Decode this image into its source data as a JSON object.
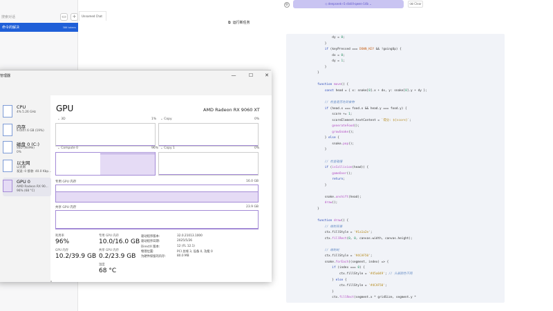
{
  "chat_app": {
    "search_placeholder": "搜索对话",
    "active_chat": {
      "title": "命令的解决",
      "count": "386 tokens"
    },
    "tab_label": "Unnamed Chat",
    "model_selector": "◇ deepseek-r1-distill-qwen-14b ⌄",
    "clear_button": "⌫ Clear",
    "code_lines": [
      [
        {
          "t": "                dy = ",
          "c": ""
        },
        {
          "t": "0",
          "c": "num"
        },
        {
          "t": ";",
          "c": ""
        }
      ],
      [
        {
          "t": "            }",
          "c": ""
        }
      ],
      [
        {
          "t": "            ",
          "c": ""
        },
        {
          "t": "if",
          "c": "kw"
        },
        {
          "t": " (keyPressed === ",
          "c": ""
        },
        {
          "t": "DOWN_KEY",
          "c": "const"
        },
        {
          "t": " && !goingUp) {",
          "c": ""
        }
      ],
      [
        {
          "t": "                dx = ",
          "c": ""
        },
        {
          "t": "0",
          "c": "num"
        },
        {
          "t": ";",
          "c": ""
        }
      ],
      [
        {
          "t": "                dy = ",
          "c": ""
        },
        {
          "t": "1",
          "c": "num"
        },
        {
          "t": ";",
          "c": ""
        }
      ],
      [
        {
          "t": "            }",
          "c": ""
        }
      ],
      [
        {
          "t": "        }",
          "c": ""
        }
      ],
      [
        {
          "t": "",
          "c": ""
        }
      ],
      [
        {
          "t": "        ",
          "c": ""
        },
        {
          "t": "function",
          "c": "kw"
        },
        {
          "t": " ",
          "c": ""
        },
        {
          "t": "move",
          "c": "fn"
        },
        {
          "t": "() {",
          "c": ""
        }
      ],
      [
        {
          "t": "            ",
          "c": ""
        },
        {
          "t": "const",
          "c": "kw"
        },
        {
          "t": " head = { x: snake[",
          "c": ""
        },
        {
          "t": "0",
          "c": "num"
        },
        {
          "t": "].x + dx, y: snake[",
          "c": ""
        },
        {
          "t": "0",
          "c": "num"
        },
        {
          "t": "].y + dy };",
          "c": ""
        }
      ],
      [
        {
          "t": "",
          "c": ""
        }
      ],
      [
        {
          "t": "            ",
          "c": ""
        },
        {
          "t": "// 检查是否吃到食物",
          "c": "cm"
        }
      ],
      [
        {
          "t": "            ",
          "c": ""
        },
        {
          "t": "if",
          "c": "kw"
        },
        {
          "t": " (head.x === food.x && head.y === food.y) {",
          "c": ""
        }
      ],
      [
        {
          "t": "                score += ",
          "c": ""
        },
        {
          "t": "1",
          "c": "num"
        },
        {
          "t": ";",
          "c": ""
        }
      ],
      [
        {
          "t": "                scoreElement.textContent = ",
          "c": ""
        },
        {
          "t": "`得分: ${score}`",
          "c": "str"
        },
        {
          "t": ";",
          "c": ""
        }
      ],
      [
        {
          "t": "                ",
          "c": ""
        },
        {
          "t": "generateFood",
          "c": "fn"
        },
        {
          "t": "();",
          "c": ""
        }
      ],
      [
        {
          "t": "                ",
          "c": ""
        },
        {
          "t": "growSnake",
          "c": "fn"
        },
        {
          "t": "();",
          "c": ""
        }
      ],
      [
        {
          "t": "            } ",
          "c": ""
        },
        {
          "t": "else",
          "c": "kw"
        },
        {
          "t": " {",
          "c": ""
        }
      ],
      [
        {
          "t": "                snake.",
          "c": ""
        },
        {
          "t": "pop",
          "c": "fn"
        },
        {
          "t": "();",
          "c": ""
        }
      ],
      [
        {
          "t": "            }",
          "c": ""
        }
      ],
      [
        {
          "t": "",
          "c": ""
        }
      ],
      [
        {
          "t": "            ",
          "c": ""
        },
        {
          "t": "// 检查碰撞",
          "c": "cm"
        }
      ],
      [
        {
          "t": "            ",
          "c": ""
        },
        {
          "t": "if",
          "c": "kw"
        },
        {
          "t": " (",
          "c": ""
        },
        {
          "t": "isCollision",
          "c": "fn"
        },
        {
          "t": "(head)) {",
          "c": ""
        }
      ],
      [
        {
          "t": "                ",
          "c": ""
        },
        {
          "t": "gameOver",
          "c": "fn"
        },
        {
          "t": "();",
          "c": ""
        }
      ],
      [
        {
          "t": "                ",
          "c": ""
        },
        {
          "t": "return",
          "c": "kw"
        },
        {
          "t": ";",
          "c": ""
        }
      ],
      [
        {
          "t": "            }",
          "c": ""
        }
      ],
      [
        {
          "t": "",
          "c": ""
        }
      ],
      [
        {
          "t": "            snake.",
          "c": ""
        },
        {
          "t": "unshift",
          "c": "fn"
        },
        {
          "t": "(head);",
          "c": ""
        }
      ],
      [
        {
          "t": "            ",
          "c": ""
        },
        {
          "t": "draw",
          "c": "fn"
        },
        {
          "t": "();",
          "c": ""
        }
      ],
      [
        {
          "t": "        }",
          "c": ""
        }
      ],
      [
        {
          "t": "",
          "c": ""
        }
      ],
      [
        {
          "t": "        ",
          "c": ""
        },
        {
          "t": "function",
          "c": "kw"
        },
        {
          "t": " ",
          "c": ""
        },
        {
          "t": "draw",
          "c": "fn"
        },
        {
          "t": "() {",
          "c": ""
        }
      ],
      [
        {
          "t": "            ",
          "c": ""
        },
        {
          "t": "// 绘制背景",
          "c": "cm"
        }
      ],
      [
        {
          "t": "            ctx.fillStyle = ",
          "c": ""
        },
        {
          "t": "'#1a1a2e'",
          "c": "str"
        },
        {
          "t": ";",
          "c": ""
        }
      ],
      [
        {
          "t": "            ctx.",
          "c": ""
        },
        {
          "t": "fillRect",
          "c": "fn"
        },
        {
          "t": "(",
          "c": ""
        },
        {
          "t": "0",
          "c": "num"
        },
        {
          "t": ", ",
          "c": ""
        },
        {
          "t": "0",
          "c": "num"
        },
        {
          "t": ", canvas.width, canvas.height);",
          "c": ""
        }
      ],
      [
        {
          "t": "",
          "c": ""
        }
      ],
      [
        {
          "t": "            ",
          "c": ""
        },
        {
          "t": "// 绘制蛇",
          "c": "cm"
        }
      ],
      [
        {
          "t": "            ctx.fillStyle = ",
          "c": ""
        },
        {
          "t": "'#4CAF50'",
          "c": "str"
        },
        {
          "t": ";",
          "c": ""
        }
      ],
      [
        {
          "t": "            snake.",
          "c": ""
        },
        {
          "t": "forEach",
          "c": "fn"
        },
        {
          "t": "((segment, index) => {",
          "c": ""
        }
      ],
      [
        {
          "t": "                ",
          "c": ""
        },
        {
          "t": "if",
          "c": "kw"
        },
        {
          "t": " (index === ",
          "c": ""
        },
        {
          "t": "0",
          "c": "num"
        },
        {
          "t": ") {",
          "c": ""
        }
      ],
      [
        {
          "t": "                    ctx.fillStyle = ",
          "c": ""
        },
        {
          "t": "'#45a049'",
          "c": "str"
        },
        {
          "t": "; ",
          "c": ""
        },
        {
          "t": "// 头部颜色不同",
          "c": "cm"
        }
      ],
      [
        {
          "t": "                } ",
          "c": ""
        },
        {
          "t": "else",
          "c": "kw"
        },
        {
          "t": " {",
          "c": ""
        }
      ],
      [
        {
          "t": "                    ctx.fillStyle = ",
          "c": ""
        },
        {
          "t": "'#4CAF50'",
          "c": "str"
        },
        {
          "t": ";",
          "c": ""
        }
      ],
      [
        {
          "t": "                }",
          "c": ""
        }
      ],
      [
        {
          "t": "                ctx.",
          "c": ""
        },
        {
          "t": "fillRect",
          "c": "fn"
        },
        {
          "t": "(segment.x * gridSize, segment.y *",
          "c": ""
        }
      ]
    ]
  },
  "task_manager": {
    "title": "管理器",
    "run_task": "运行新任务",
    "devices": [
      {
        "name": "CPU",
        "sub1": "4% 5.26 GHz",
        "sub2": ""
      },
      {
        "name": "内存",
        "sub1": "9.0/47.6 GB (19%)",
        "sub2": ""
      },
      {
        "name": "磁盘 0 (C:)",
        "sub1": "SSD (NVMe)",
        "sub2": "0%"
      },
      {
        "name": "以太网",
        "sub1": "以太网",
        "sub2": "发送: 0 接收: 40.0 Kbp..."
      },
      {
        "name": "GPU 0",
        "sub1": "AMD Radeon RX 90...",
        "sub2": "96% (68 °C)"
      }
    ],
    "gpu": {
      "heading": "GPU",
      "model": "AMD Radeon RX 9060 XT",
      "graphs": [
        {
          "name": "3D",
          "pct": "1%",
          "fill": 0.01
        },
        {
          "name": "Copy",
          "pct": "0%",
          "fill": 0.0
        },
        {
          "name": "Compute 0",
          "pct": "96%",
          "fill": 0.96
        },
        {
          "name": "Copy 1",
          "pct": "0%",
          "fill": 0.0
        }
      ],
      "dedicated_label": "专用 GPU 内存",
      "dedicated_max": "16.0 GB",
      "dedicated_fill": 0.625,
      "shared_label": "共享 GPU 内存",
      "shared_max": "23.9 GB",
      "shared_fill": 0.01,
      "stats": {
        "util_label": "利用率",
        "util": "96%",
        "ded_label": "专用 GPU 内存",
        "ded": "10.0/16.0 GB",
        "gpumem_label": "GPU 内存",
        "gpumem": "10.2/39.9 GB",
        "shared_label": "共享 GPU 内存",
        "shared": "0.2/23.9 GB",
        "temp_label": "温度",
        "temp": "68 °C"
      },
      "details": [
        {
          "k": "驱动程序版本:",
          "v": "32.0.21013.1000"
        },
        {
          "k": "驱动程序日期:",
          "v": "2025/5/26"
        },
        {
          "k": "DirectX 版本:",
          "v": "12 (FL 12.1)"
        },
        {
          "k": "物理位置:",
          "v": "PCI 总线 3, 设备 0, 功能 0"
        },
        {
          "k": "为硬件保留的内存:",
          "v": "80.0 MB"
        }
      ]
    }
  },
  "colors": {
    "accent": "#1f5fd8",
    "graph": "#a38ad6",
    "graph_fill": "#e5dbf5"
  }
}
